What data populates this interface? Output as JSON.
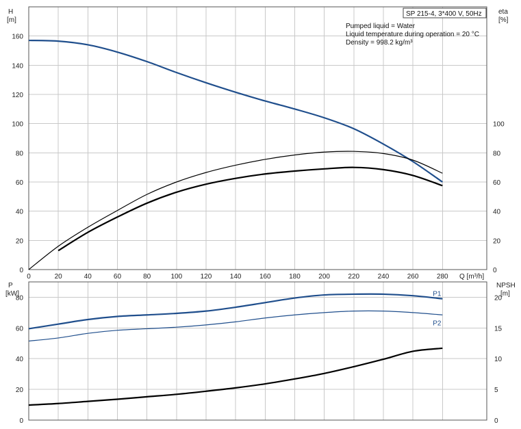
{
  "chart_data": [
    {
      "type": "line",
      "title_box": "SP 215-4, 3*400 V, 50Hz",
      "info_lines": [
        "Pumped liquid = Water",
        "Liquid temperature during operation = 20 °C",
        "Density = 998.2 kg/m³"
      ],
      "xlabel": "Q [m³/h]",
      "ylabel_left": [
        "H",
        "[m]"
      ],
      "ylabel_right": [
        "eta",
        "[%]"
      ],
      "xlim": [
        0,
        310
      ],
      "xticks": [
        0,
        20,
        40,
        60,
        80,
        100,
        120,
        140,
        160,
        180,
        200,
        220,
        240,
        260,
        280
      ],
      "ylim": [
        0,
        180
      ],
      "yticks_left": [
        0,
        20,
        40,
        60,
        80,
        100,
        120,
        140,
        160
      ],
      "yticks_right": [
        0,
        20,
        40,
        60,
        80,
        100
      ],
      "grid": true,
      "series": [
        {
          "name": "",
          "axis": "left",
          "color": "#1f4e8c",
          "x": [
            0,
            20,
            40,
            60,
            80,
            100,
            120,
            140,
            160,
            180,
            200,
            220,
            240,
            260,
            280
          ],
          "values": [
            157,
            156.5,
            154,
            149,
            142.5,
            135,
            128,
            121.5,
            115.5,
            110,
            104,
            96.5,
            86,
            74,
            60
          ]
        },
        {
          "name": "",
          "axis": "right",
          "color": "#000000",
          "x": [
            0,
            20,
            40,
            60,
            80,
            100,
            120,
            140,
            160,
            180,
            200,
            220,
            240,
            260,
            280
          ],
          "values": [
            0,
            16,
            29,
            40.5,
            51.5,
            60,
            66.5,
            71.5,
            75.5,
            78.5,
            80.5,
            81,
            79.5,
            75,
            66
          ]
        },
        {
          "name": "",
          "axis": "right",
          "color": "#000000",
          "x": [
            20,
            40,
            60,
            80,
            100,
            120,
            140,
            160,
            180,
            200,
            220,
            240,
            260,
            280
          ],
          "values": [
            13,
            25.5,
            36,
            45.5,
            53,
            58.5,
            62.5,
            65.5,
            67.5,
            69,
            70,
            68.5,
            64.5,
            57.5
          ]
        }
      ]
    },
    {
      "type": "line",
      "xlim": [
        0,
        310
      ],
      "xticks": [
        0,
        20,
        40,
        60,
        80,
        100,
        120,
        140,
        160,
        180,
        200,
        220,
        240,
        260,
        280
      ],
      "ylabel_left": [
        "P",
        "[kW]"
      ],
      "ylabel_right": [
        "NPSH",
        "[m]"
      ],
      "ylim": [
        0,
        90
      ],
      "yticks_left": [
        0,
        20,
        40,
        60,
        80
      ],
      "ylim_right": [
        0,
        22.5
      ],
      "yticks_right": [
        0,
        5,
        10,
        15,
        20
      ],
      "grid": true,
      "series": [
        {
          "name": "P1",
          "axis": "left",
          "color": "#1f4e8c",
          "x": [
            0,
            20,
            40,
            60,
            80,
            100,
            120,
            140,
            160,
            180,
            200,
            220,
            240,
            260,
            280
          ],
          "values": [
            59.5,
            62.5,
            65.5,
            67.5,
            68.5,
            69.5,
            71,
            73.5,
            76.5,
            79.5,
            81.5,
            82,
            82,
            81,
            79
          ]
        },
        {
          "name": "P2",
          "axis": "left",
          "color": "#1f4e8c",
          "x": [
            0,
            20,
            40,
            60,
            80,
            100,
            120,
            140,
            160,
            180,
            200,
            220,
            240,
            260,
            280
          ],
          "values": [
            51.5,
            53.5,
            56.5,
            58.5,
            59.5,
            60.5,
            62,
            64,
            66.5,
            68.5,
            70,
            71,
            71,
            70,
            68.5
          ]
        },
        {
          "name": "",
          "axis": "right",
          "color": "#000000",
          "x": [
            0,
            20,
            40,
            60,
            80,
            100,
            120,
            140,
            160,
            180,
            200,
            220,
            240,
            260,
            280
          ],
          "values": [
            2.45,
            2.7,
            3.05,
            3.4,
            3.8,
            4.2,
            4.7,
            5.25,
            5.9,
            6.7,
            7.6,
            8.7,
            9.9,
            11.2,
            11.7
          ]
        }
      ]
    }
  ]
}
